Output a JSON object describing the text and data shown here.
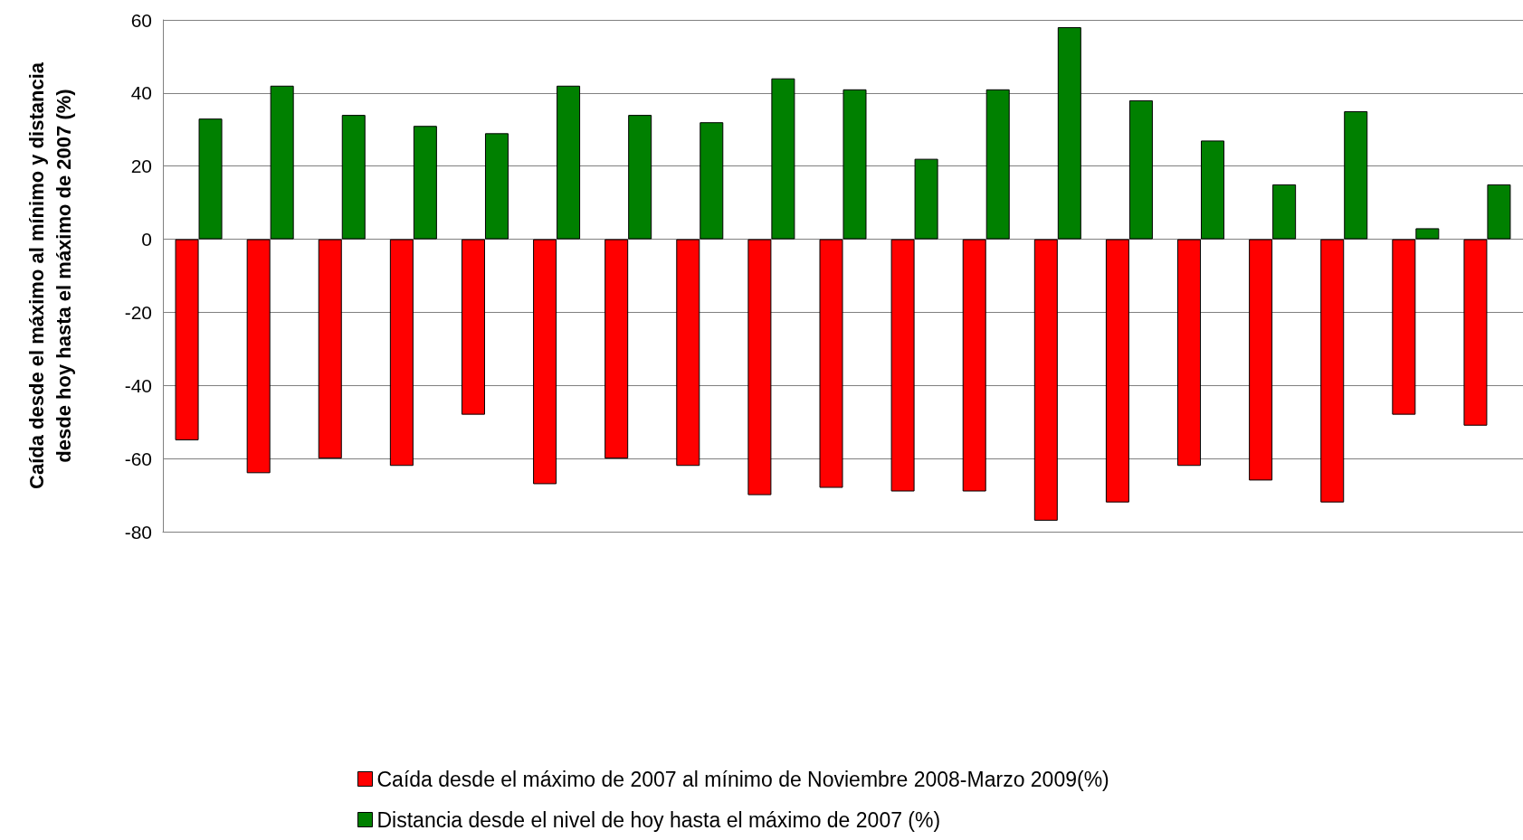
{
  "chart_data": {
    "type": "bar",
    "ylabel": "Caída desde el máximo al mínimo y distancia desde hoy hasta el máximo de 2007 (%)",
    "categories": [
      null,
      null,
      null,
      null,
      null,
      null,
      null,
      null,
      null,
      null,
      null,
      null,
      null,
      null,
      null,
      null,
      null,
      null,
      null
    ],
    "series": [
      {
        "name": "Caída desde el máximo de 2007 al mínimo de Noviembre 2008-Marzo 2009(%)",
        "color": "#ff0000",
        "values": [
          -55,
          -64,
          -60,
          -62,
          -48,
          -67,
          -60,
          -62,
          -70,
          -68,
          -69,
          -69,
          -77,
          -72,
          -62,
          -66,
          -72,
          -48,
          -51
        ]
      },
      {
        "name": "Distancia desde el nivel de hoy hasta el máximo de 2007 (%)",
        "color": "#008000",
        "values": [
          33,
          42,
          34,
          31,
          29,
          42,
          34,
          32,
          44,
          41,
          22,
          41,
          58,
          38,
          27,
          15,
          35,
          3,
          15
        ]
      }
    ],
    "ylim": [
      -80,
      60
    ],
    "yticks": [
      -80,
      -60,
      -40,
      -20,
      0,
      20,
      40,
      60
    ],
    "grid": "y",
    "legend": "bottom"
  }
}
